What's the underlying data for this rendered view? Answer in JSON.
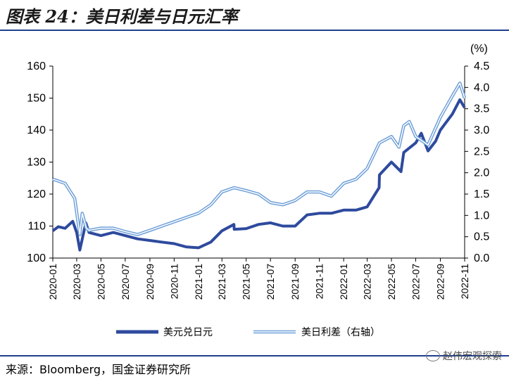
{
  "header": {
    "title": "图表 24：美日利差与日元汇率"
  },
  "footer": {
    "source": "来源：Bloomberg，国金证券研究所",
    "watermark": "赵伟宏观探索"
  },
  "chart_data": {
    "type": "line",
    "unit_right": "(%)",
    "y_left": {
      "lim": [
        100,
        160
      ],
      "ticks": [
        "100",
        "110",
        "120",
        "130",
        "140",
        "150",
        "160"
      ]
    },
    "y_right": {
      "lim": [
        0,
        4.5
      ],
      "ticks": [
        "0.0",
        "0.5",
        "1.0",
        "1.5",
        "2.0",
        "2.5",
        "3.0",
        "3.5",
        "4.0",
        "4.5"
      ]
    },
    "x_ticks": [
      "2020-01",
      "2020-03",
      "2020-05",
      "2020-07",
      "2020-09",
      "2020-11",
      "2021-01",
      "2021-03",
      "2021-05",
      "2021-07",
      "2021-09",
      "2021-11",
      "2022-01",
      "2022-03",
      "2022-05",
      "2022-07",
      "2022-09",
      "2022-11"
    ],
    "series": [
      {
        "name": "美元兑日元",
        "axis": "left",
        "color": "#2e4a9e",
        "points": [
          [
            "2020-01",
            108.5
          ],
          [
            "2020-01-15",
            109.8
          ],
          [
            "2020-02",
            109.3
          ],
          [
            "2020-02-20",
            111.5
          ],
          [
            "2020-03-01",
            108.0
          ],
          [
            "2020-03-09",
            102.5
          ],
          [
            "2020-03-24",
            111.0
          ],
          [
            "2020-04",
            108.0
          ],
          [
            "2020-05",
            107.0
          ],
          [
            "2020-06",
            108.0
          ],
          [
            "2020-07",
            107.0
          ],
          [
            "2020-08",
            106.0
          ],
          [
            "2020-09",
            105.5
          ],
          [
            "2020-10",
            105.0
          ],
          [
            "2020-11",
            104.5
          ],
          [
            "2020-12",
            103.5
          ],
          [
            "2021-01",
            103.2
          ],
          [
            "2021-02",
            105.0
          ],
          [
            "2021-03",
            108.5
          ],
          [
            "2021-03-31",
            110.5
          ],
          [
            "2021-04",
            109.0
          ],
          [
            "2021-05",
            109.2
          ],
          [
            "2021-06",
            110.5
          ],
          [
            "2021-07",
            111.0
          ],
          [
            "2021-08",
            110.0
          ],
          [
            "2021-09",
            110.0
          ],
          [
            "2021-10",
            113.5
          ],
          [
            "2021-11",
            114.0
          ],
          [
            "2021-12",
            114.0
          ],
          [
            "2022-01",
            115.0
          ],
          [
            "2022-02",
            115.0
          ],
          [
            "2022-03",
            116.0
          ],
          [
            "2022-03-31",
            122.0
          ],
          [
            "2022-04",
            126.0
          ],
          [
            "2022-05",
            130.0
          ],
          [
            "2022-05-25",
            127.0
          ],
          [
            "2022-06",
            133.0
          ],
          [
            "2022-07",
            136.0
          ],
          [
            "2022-07-15",
            139.0
          ],
          [
            "2022-08",
            133.5
          ],
          [
            "2022-08-20",
            136.5
          ],
          [
            "2022-09",
            140.0
          ],
          [
            "2022-09-25",
            144.0
          ],
          [
            "2022-10",
            145.0
          ],
          [
            "2022-10-20",
            149.5
          ],
          [
            "2022-11",
            147.0
          ]
        ]
      },
      {
        "name": "美日利差（右轴）",
        "axis": "right",
        "color": "#6fa0d8",
        "points": [
          [
            "2020-01",
            1.85
          ],
          [
            "2020-02",
            1.75
          ],
          [
            "2020-02-25",
            1.4
          ],
          [
            "2020-03-09",
            0.55
          ],
          [
            "2020-03-15",
            1.05
          ],
          [
            "2020-03-25",
            0.7
          ],
          [
            "2020-04",
            0.65
          ],
          [
            "2020-05",
            0.7
          ],
          [
            "2020-06",
            0.7
          ],
          [
            "2020-07",
            0.62
          ],
          [
            "2020-08",
            0.55
          ],
          [
            "2020-09",
            0.65
          ],
          [
            "2020-10",
            0.75
          ],
          [
            "2020-11",
            0.85
          ],
          [
            "2020-12",
            0.95
          ],
          [
            "2021-01",
            1.05
          ],
          [
            "2021-02",
            1.25
          ],
          [
            "2021-03",
            1.55
          ],
          [
            "2021-04",
            1.65
          ],
          [
            "2021-05",
            1.58
          ],
          [
            "2021-06",
            1.5
          ],
          [
            "2021-07",
            1.3
          ],
          [
            "2021-08",
            1.25
          ],
          [
            "2021-09",
            1.35
          ],
          [
            "2021-10",
            1.55
          ],
          [
            "2021-11",
            1.55
          ],
          [
            "2021-12",
            1.45
          ],
          [
            "2022-01",
            1.75
          ],
          [
            "2022-02",
            1.85
          ],
          [
            "2022-03",
            2.1
          ],
          [
            "2022-04",
            2.7
          ],
          [
            "2022-05",
            2.85
          ],
          [
            "2022-05-20",
            2.6
          ],
          [
            "2022-06",
            3.1
          ],
          [
            "2022-06-15",
            3.2
          ],
          [
            "2022-07",
            2.85
          ],
          [
            "2022-08",
            2.65
          ],
          [
            "2022-09",
            3.3
          ],
          [
            "2022-10",
            3.8
          ],
          [
            "2022-10-20",
            4.1
          ],
          [
            "2022-11",
            3.75
          ]
        ]
      }
    ]
  }
}
